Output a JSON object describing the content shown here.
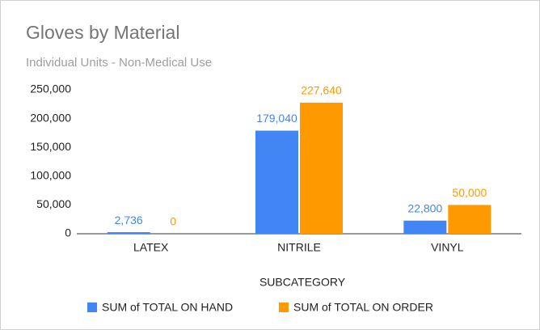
{
  "chart_data": {
    "type": "bar",
    "title": "Gloves by Material",
    "subtitle": "Individual Units - Non-Medical Use",
    "x_label": "SUBCATEGORY",
    "categories": [
      "LATEX",
      "NITRILE",
      "VINYL"
    ],
    "series": [
      {
        "name": "SUM of TOTAL ON HAND",
        "color": "#4285f4",
        "values": [
          2736,
          179040,
          22800
        ],
        "value_labels": [
          "2,736",
          "179,040",
          "22,800"
        ]
      },
      {
        "name": "SUM of TOTAL ON ORDER",
        "color": "#ff9900",
        "values": [
          0,
          227640,
          50000
        ],
        "value_labels": [
          "0",
          "227,640",
          "50,000"
        ]
      }
    ],
    "ylim": [
      0,
      250000
    ],
    "yticks": [
      0,
      {
        "value": 50000,
        "label": "50,000"
      },
      {
        "value": 100000,
        "label": "100,000"
      },
      {
        "value": 150000,
        "label": "150,000"
      },
      {
        "value": 200000,
        "label": "200,000"
      },
      {
        "value": 250000,
        "label": "250,000"
      }
    ],
    "grid": false,
    "legend": "bottom"
  }
}
